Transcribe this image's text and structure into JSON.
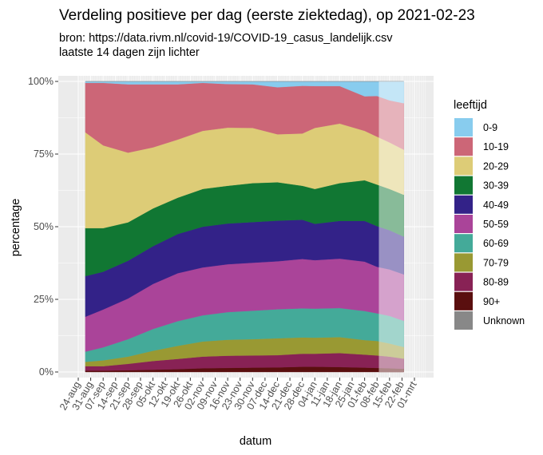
{
  "chart_data": {
    "type": "area",
    "stacked": "percent",
    "title": "Verdeling positieve per dag (eerste ziektedag), op 2021-02-23",
    "subtitle_lines": [
      "bron: https://data.rivm.nl/covid-19/COVID-19_casus_landelijk.csv",
      "laatste 14 dagen zijn lichter"
    ],
    "xlabel": "datum",
    "ylabel": "percentage",
    "x_range": [
      "2020-08-24",
      "2021-03-01"
    ],
    "x_ticks": [
      "24-aug",
      "31-aug",
      "07-sep",
      "14-sep",
      "21-sep",
      "28-sep",
      "05-okt",
      "12-okt",
      "19-okt",
      "26-okt",
      "02-nov",
      "09-nov",
      "16-nov",
      "23-nov",
      "30-nov",
      "07-dec",
      "14-dec",
      "21-dec",
      "28-dec",
      "04-jan",
      "11-jan",
      "18-jan",
      "25-jan",
      "01-feb",
      "08-feb",
      "15-feb",
      "22-feb",
      "01-mrt"
    ],
    "y_ticks": [
      "0%",
      "25%",
      "50%",
      "75%",
      "100%"
    ],
    "ylim": [
      0,
      100
    ],
    "grid": true,
    "legend": {
      "title": "leeftijd",
      "position": "right"
    },
    "lighter_period": [
      "2021-02-09",
      "2021-02-23"
    ],
    "x": [
      "2020-08-28",
      "2020-09-07",
      "2020-09-21",
      "2020-10-05",
      "2020-10-19",
      "2020-11-02",
      "2020-11-16",
      "2020-11-30",
      "2020-12-14",
      "2020-12-28",
      "2021-01-04",
      "2021-01-18",
      "2021-02-01",
      "2021-02-08",
      "2021-02-15",
      "2021-02-23"
    ],
    "series": [
      {
        "name": "90+",
        "color": "#5a0f0f",
        "values": [
          0.5,
          0.5,
          0.6,
          0.8,
          1.0,
          1.3,
          1.4,
          1.5,
          1.6,
          1.8,
          1.8,
          1.7,
          1.5,
          1.4,
          1.3,
          1.1
        ]
      },
      {
        "name": "80-89",
        "color": "#882255",
        "values": [
          1.5,
          1.5,
          2.2,
          3.0,
          3.5,
          4.0,
          4.2,
          4.2,
          4.2,
          4.5,
          4.5,
          4.8,
          4.5,
          4.3,
          4.0,
          3.5
        ]
      },
      {
        "name": "70-79",
        "color": "#999933",
        "values": [
          1.5,
          2.0,
          2.5,
          3.5,
          4.5,
          5.2,
          5.5,
          5.6,
          5.8,
          5.6,
          5.5,
          5.5,
          5.0,
          5.0,
          4.5,
          4.0
        ]
      },
      {
        "name": "60-69",
        "color": "#44aa99",
        "values": [
          3.5,
          4.5,
          6.0,
          7.5,
          8.5,
          9.0,
          9.5,
          9.8,
          10.0,
          10.0,
          10.0,
          10.0,
          10.0,
          9.5,
          9.5,
          9.0
        ]
      },
      {
        "name": "50-59",
        "color": "#aa4499",
        "values": [
          12.0,
          13.0,
          14.0,
          15.5,
          16.5,
          16.5,
          16.5,
          16.5,
          16.5,
          17.0,
          16.7,
          17.0,
          17.0,
          16.0,
          16.0,
          16.0
        ]
      },
      {
        "name": "40-49",
        "color": "#332288",
        "values": [
          14.0,
          13.0,
          13.0,
          13.0,
          13.5,
          14.0,
          14.0,
          14.0,
          14.0,
          13.5,
          12.5,
          13.0,
          14.0,
          14.0,
          13.5,
          13.0
        ]
      },
      {
        "name": "30-39",
        "color": "#117733",
        "values": [
          16.5,
          15.0,
          13.2,
          13.0,
          12.5,
          13.0,
          13.0,
          13.4,
          13.2,
          11.7,
          12.0,
          13.0,
          14.0,
          14.3,
          14.2,
          14.4
        ]
      },
      {
        "name": "20-29",
        "color": "#ddcc77",
        "values": [
          33.0,
          28.5,
          24.0,
          21.0,
          20.0,
          20.0,
          20.0,
          19.0,
          16.5,
          18.0,
          21.0,
          20.5,
          17.0,
          16.5,
          16.0,
          15.5
        ]
      },
      {
        "name": "10-19",
        "color": "#cc6677",
        "values": [
          17.0,
          21.5,
          23.5,
          21.7,
          19.0,
          16.5,
          15.0,
          15.0,
          16.2,
          16.4,
          14.4,
          12.9,
          11.9,
          14.0,
          14.5,
          16.0
        ]
      },
      {
        "name": "0-9",
        "color": "#88ccee",
        "values": [
          0.5,
          0.5,
          1.0,
          1.0,
          1.0,
          0.5,
          0.9,
          1.0,
          2.0,
          1.5,
          1.6,
          1.6,
          5.1,
          5.0,
          6.5,
          7.5
        ]
      },
      {
        "name": "Unknown",
        "color": "#888888",
        "values": [
          0,
          0,
          0,
          0,
          0,
          0,
          0,
          0,
          0,
          0,
          0,
          0,
          0,
          0,
          0,
          0
        ]
      }
    ]
  }
}
